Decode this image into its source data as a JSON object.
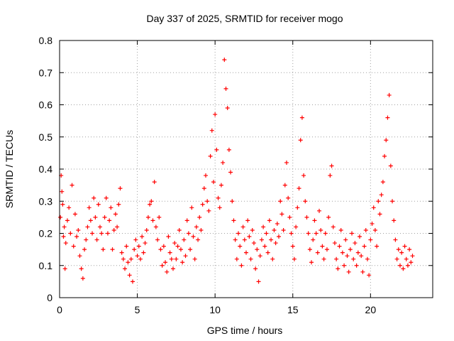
{
  "chart_data": {
    "type": "scatter",
    "title": "Day 337 of 2025, SRMTID for receiver mogo",
    "xlabel": "GPS time / hours",
    "ylabel": "SRMTID / TECUs",
    "xlim": [
      0,
      24
    ],
    "ylim": [
      0,
      0.8
    ],
    "xticks": [
      0,
      5,
      10,
      15,
      20
    ],
    "yticks": [
      0,
      0.1,
      0.2,
      0.3,
      0.4,
      0.5,
      0.6,
      0.7,
      0.8
    ],
    "xtick_labels": [
      "0",
      "5",
      "10",
      "15",
      "20"
    ],
    "ytick_labels": [
      "0",
      "0.1",
      "0.2",
      "0.3",
      "0.4",
      "0.5",
      "0.6",
      "0.7",
      "0.8"
    ],
    "grid": true,
    "marker": "+",
    "color": "#ff0000",
    "series": [
      {
        "name": "SRMTID",
        "points": [
          [
            0.05,
            0.25
          ],
          [
            0.1,
            0.38
          ],
          [
            0.15,
            0.33
          ],
          [
            0.2,
            0.29
          ],
          [
            0.25,
            0.19
          ],
          [
            0.3,
            0.22
          ],
          [
            0.35,
            0.09
          ],
          [
            0.4,
            0.17
          ],
          [
            0.5,
            0.24
          ],
          [
            0.6,
            0.28
          ],
          [
            0.7,
            0.2
          ],
          [
            0.8,
            0.35
          ],
          [
            0.9,
            0.16
          ],
          [
            1.0,
            0.26
          ],
          [
            1.1,
            0.19
          ],
          [
            1.2,
            0.21
          ],
          [
            1.3,
            0.13
          ],
          [
            1.4,
            0.09
          ],
          [
            1.5,
            0.06
          ],
          [
            1.6,
            0.15
          ],
          [
            1.7,
            0.18
          ],
          [
            1.8,
            0.22
          ],
          [
            1.9,
            0.28
          ],
          [
            2.0,
            0.24
          ],
          [
            2.1,
            0.2
          ],
          [
            2.2,
            0.31
          ],
          [
            2.3,
            0.25
          ],
          [
            2.4,
            0.18
          ],
          [
            2.5,
            0.29
          ],
          [
            2.6,
            0.22
          ],
          [
            2.7,
            0.2
          ],
          [
            2.8,
            0.15
          ],
          [
            2.9,
            0.25
          ],
          [
            3.0,
            0.31
          ],
          [
            3.1,
            0.2
          ],
          [
            3.2,
            0.24
          ],
          [
            3.3,
            0.28
          ],
          [
            3.4,
            0.15
          ],
          [
            3.5,
            0.21
          ],
          [
            3.6,
            0.26
          ],
          [
            3.7,
            0.22
          ],
          [
            3.8,
            0.29
          ],
          [
            3.9,
            0.34
          ],
          [
            4.0,
            0.14
          ],
          [
            4.1,
            0.12
          ],
          [
            4.2,
            0.09
          ],
          [
            4.3,
            0.16
          ],
          [
            4.4,
            0.11
          ],
          [
            4.5,
            0.07
          ],
          [
            4.6,
            0.12
          ],
          [
            4.7,
            0.05
          ],
          [
            4.8,
            0.15
          ],
          [
            4.9,
            0.18
          ],
          [
            5.0,
            0.13
          ],
          [
            5.1,
            0.16
          ],
          [
            5.2,
            0.12
          ],
          [
            5.3,
            0.19
          ],
          [
            5.4,
            0.14
          ],
          [
            5.5,
            0.17
          ],
          [
            5.6,
            0.21
          ],
          [
            5.7,
            0.25
          ],
          [
            5.8,
            0.29
          ],
          [
            5.9,
            0.3
          ],
          [
            6.0,
            0.24
          ],
          [
            6.1,
            0.36
          ],
          [
            6.2,
            0.22
          ],
          [
            6.3,
            0.18
          ],
          [
            6.4,
            0.25
          ],
          [
            6.5,
            0.15
          ],
          [
            6.6,
            0.1
          ],
          [
            6.7,
            0.16
          ],
          [
            6.8,
            0.11
          ],
          [
            6.9,
            0.08
          ],
          [
            7.0,
            0.19
          ],
          [
            7.1,
            0.14
          ],
          [
            7.2,
            0.12
          ],
          [
            7.3,
            0.09
          ],
          [
            7.4,
            0.17
          ],
          [
            7.5,
            0.12
          ],
          [
            7.6,
            0.16
          ],
          [
            7.7,
            0.21
          ],
          [
            7.8,
            0.15
          ],
          [
            7.9,
            0.11
          ],
          [
            8.0,
            0.18
          ],
          [
            8.1,
            0.13
          ],
          [
            8.2,
            0.24
          ],
          [
            8.3,
            0.2
          ],
          [
            8.4,
            0.15
          ],
          [
            8.5,
            0.28
          ],
          [
            8.6,
            0.19
          ],
          [
            8.7,
            0.12
          ],
          [
            8.8,
            0.22
          ],
          [
            8.9,
            0.18
          ],
          [
            9.0,
            0.25
          ],
          [
            9.1,
            0.21
          ],
          [
            9.2,
            0.29
          ],
          [
            9.3,
            0.34
          ],
          [
            9.4,
            0.38
          ],
          [
            9.5,
            0.3
          ],
          [
            9.6,
            0.27
          ],
          [
            9.7,
            0.44
          ],
          [
            9.8,
            0.52
          ],
          [
            9.9,
            0.36
          ],
          [
            10.0,
            0.57
          ],
          [
            10.1,
            0.46
          ],
          [
            10.2,
            0.31
          ],
          [
            10.3,
            0.28
          ],
          [
            10.4,
            0.35
          ],
          [
            10.5,
            0.42
          ],
          [
            10.6,
            0.74
          ],
          [
            10.7,
            0.65
          ],
          [
            10.8,
            0.59
          ],
          [
            10.9,
            0.46
          ],
          [
            11.0,
            0.39
          ],
          [
            11.1,
            0.3
          ],
          [
            11.2,
            0.24
          ],
          [
            11.3,
            0.18
          ],
          [
            11.4,
            0.12
          ],
          [
            11.5,
            0.2
          ],
          [
            11.6,
            0.16
          ],
          [
            11.7,
            0.1
          ],
          [
            11.8,
            0.22
          ],
          [
            11.9,
            0.18
          ],
          [
            12.0,
            0.14
          ],
          [
            12.1,
            0.24
          ],
          [
            12.2,
            0.19
          ],
          [
            12.3,
            0.12
          ],
          [
            12.4,
            0.21
          ],
          [
            12.5,
            0.17
          ],
          [
            12.6,
            0.09
          ],
          [
            12.7,
            0.15
          ],
          [
            12.8,
            0.05
          ],
          [
            12.9,
            0.13
          ],
          [
            13.0,
            0.18
          ],
          [
            13.1,
            0.22
          ],
          [
            13.2,
            0.16
          ],
          [
            13.3,
            0.2
          ],
          [
            13.4,
            0.14
          ],
          [
            13.5,
            0.24
          ],
          [
            13.6,
            0.18
          ],
          [
            13.7,
            0.12
          ],
          [
            13.8,
            0.21
          ],
          [
            13.9,
            0.17
          ],
          [
            14.0,
            0.23
          ],
          [
            14.1,
            0.19
          ],
          [
            14.2,
            0.3
          ],
          [
            14.3,
            0.26
          ],
          [
            14.4,
            0.21
          ],
          [
            14.5,
            0.35
          ],
          [
            14.6,
            0.42
          ],
          [
            14.7,
            0.31
          ],
          [
            14.8,
            0.25
          ],
          [
            14.9,
            0.2
          ],
          [
            15.0,
            0.16
          ],
          [
            15.1,
            0.12
          ],
          [
            15.2,
            0.22
          ],
          [
            15.3,
            0.28
          ],
          [
            15.4,
            0.34
          ],
          [
            15.5,
            0.49
          ],
          [
            15.6,
            0.56
          ],
          [
            15.7,
            0.38
          ],
          [
            15.8,
            0.3
          ],
          [
            15.9,
            0.25
          ],
          [
            16.0,
            0.2
          ],
          [
            16.1,
            0.15
          ],
          [
            16.2,
            0.11
          ],
          [
            16.3,
            0.18
          ],
          [
            16.4,
            0.24
          ],
          [
            16.5,
            0.2
          ],
          [
            16.6,
            0.14
          ],
          [
            16.7,
            0.27
          ],
          [
            16.8,
            0.21
          ],
          [
            16.9,
            0.16
          ],
          [
            17.0,
            0.12
          ],
          [
            17.1,
            0.2
          ],
          [
            17.2,
            0.15
          ],
          [
            17.3,
            0.25
          ],
          [
            17.4,
            0.38
          ],
          [
            17.5,
            0.41
          ],
          [
            17.6,
            0.22
          ],
          [
            17.7,
            0.17
          ],
          [
            17.8,
            0.12
          ],
          [
            17.9,
            0.09
          ],
          [
            18.0,
            0.16
          ],
          [
            18.1,
            0.21
          ],
          [
            18.2,
            0.14
          ],
          [
            18.3,
            0.1
          ],
          [
            18.4,
            0.18
          ],
          [
            18.5,
            0.13
          ],
          [
            18.6,
            0.08
          ],
          [
            18.7,
            0.15
          ],
          [
            18.8,
            0.2
          ],
          [
            18.9,
            0.12
          ],
          [
            19.0,
            0.17
          ],
          [
            19.1,
            0.1
          ],
          [
            19.2,
            0.14
          ],
          [
            19.3,
            0.19
          ],
          [
            19.4,
            0.13
          ],
          [
            19.5,
            0.08
          ],
          [
            19.6,
            0.16
          ],
          [
            19.7,
            0.21
          ],
          [
            19.8,
            0.12
          ],
          [
            19.9,
            0.07
          ],
          [
            20.0,
            0.18
          ],
          [
            20.1,
            0.23
          ],
          [
            20.2,
            0.28
          ],
          [
            20.3,
            0.21
          ],
          [
            20.4,
            0.16
          ],
          [
            20.5,
            0.3
          ],
          [
            20.6,
            0.26
          ],
          [
            20.7,
            0.32
          ],
          [
            20.8,
            0.36
          ],
          [
            20.9,
            0.44
          ],
          [
            21.0,
            0.49
          ],
          [
            21.1,
            0.56
          ],
          [
            21.2,
            0.63
          ],
          [
            21.3,
            0.41
          ],
          [
            21.4,
            0.3
          ],
          [
            21.5,
            0.24
          ],
          [
            21.6,
            0.18
          ],
          [
            21.7,
            0.12
          ],
          [
            21.8,
            0.15
          ],
          [
            21.9,
            0.1
          ],
          [
            22.0,
            0.14
          ],
          [
            22.1,
            0.09
          ],
          [
            22.2,
            0.16
          ],
          [
            22.3,
            0.12
          ],
          [
            22.4,
            0.1
          ],
          [
            22.5,
            0.15
          ],
          [
            22.6,
            0.11
          ],
          [
            22.7,
            0.13
          ]
        ]
      }
    ]
  }
}
